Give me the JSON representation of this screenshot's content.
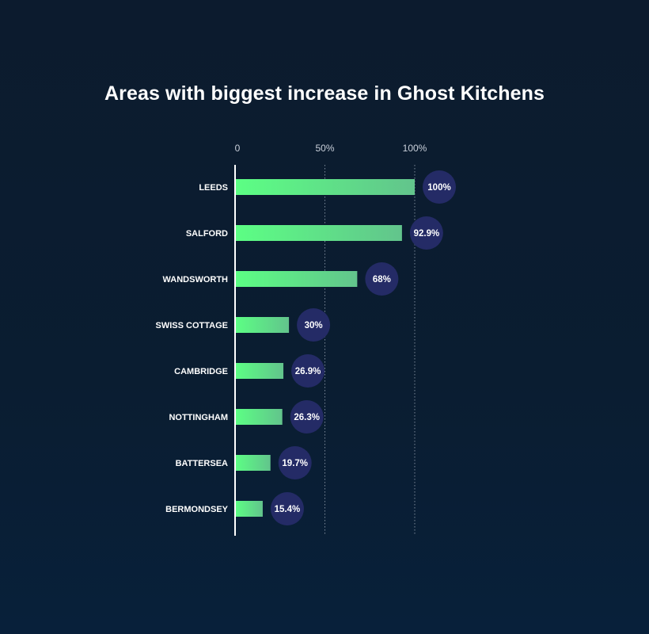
{
  "chart_data": {
    "type": "bar",
    "orientation": "horizontal",
    "title": "Areas with biggest increase in Ghost Kitchens",
    "categories": [
      "LEEDS",
      "SALFORD",
      "WANDSWORTH",
      "SWISS COTTAGE",
      "CAMBRIDGE",
      "NOTTINGHAM",
      "BATTERSEA",
      "BERMONDSEY"
    ],
    "values": [
      100,
      92.9,
      68,
      30,
      26.9,
      26.3,
      19.7,
      15.4
    ],
    "value_labels": [
      "100%",
      "92.9%",
      "68%",
      "30%",
      "26.9%",
      "26.3%",
      "19.7%",
      "15.4%"
    ],
    "xticks": [
      {
        "value": 0,
        "label": "0"
      },
      {
        "value": 50,
        "label": "50%"
      },
      {
        "value": 100,
        "label": "100%"
      }
    ],
    "xlim": [
      0,
      100
    ],
    "grid": "vertical dotted at 50% and 100%",
    "xlabel": "",
    "ylabel": "",
    "colors": {
      "bar_start": "#5cff84",
      "bar_end": "#62c48c",
      "badge": "#242b66",
      "axis": "#ffffff",
      "grid": "#7a8797"
    }
  }
}
